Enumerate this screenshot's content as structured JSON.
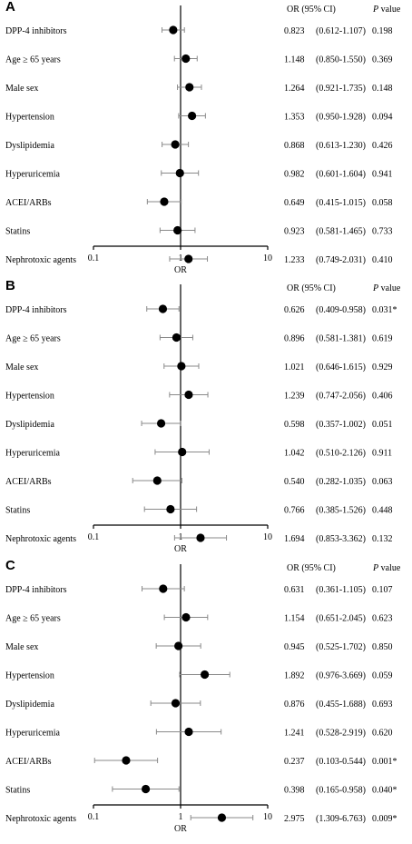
{
  "chart_data": [
    {
      "type": "forest",
      "panel": "A",
      "xlabel": "OR",
      "x_scale": "log",
      "xlim": [
        0.1,
        10
      ],
      "x_ticks": [
        "0.1",
        "1",
        "10"
      ],
      "ref_line": 1,
      "col_headers": {
        "or": "OR (95% CI)",
        "p_italic": "P",
        "p_rest": " value"
      },
      "rows": [
        {
          "label": "DPP-4 inhibitors",
          "or": 0.823,
          "lo": 0.612,
          "hi": 1.107,
          "or_text": "0.823",
          "ci_text": "(0.612-1.107)",
          "p_text": "0.198"
        },
        {
          "label": "Age ≥ 65 years",
          "or": 1.148,
          "lo": 0.85,
          "hi": 1.55,
          "or_text": "1.148",
          "ci_text": "(0.850-1.550)",
          "p_text": "0.369"
        },
        {
          "label": "Male sex",
          "or": 1.264,
          "lo": 0.921,
          "hi": 1.735,
          "or_text": "1.264",
          "ci_text": "(0.921-1.735)",
          "p_text": "0.148"
        },
        {
          "label": "Hypertension",
          "or": 1.353,
          "lo": 0.95,
          "hi": 1.928,
          "or_text": "1.353",
          "ci_text": "(0.950-1.928)",
          "p_text": "0.094"
        },
        {
          "label": "Dyslipidemia",
          "or": 0.868,
          "lo": 0.613,
          "hi": 1.23,
          "or_text": "0.868",
          "ci_text": "(0.613-1.230)",
          "p_text": "0.426"
        },
        {
          "label": "Hyperuricemia",
          "or": 0.982,
          "lo": 0.601,
          "hi": 1.604,
          "or_text": "0.982",
          "ci_text": "(0.601-1.604)",
          "p_text": "0.941"
        },
        {
          "label": "ACEI/ARBs",
          "or": 0.649,
          "lo": 0.415,
          "hi": 1.015,
          "or_text": "0.649",
          "ci_text": "(0.415-1.015)",
          "p_text": "0.058"
        },
        {
          "label": "Statins",
          "or": 0.923,
          "lo": 0.581,
          "hi": 1.465,
          "or_text": "0.923",
          "ci_text": "(0.581-1.465)",
          "p_text": "0.733"
        },
        {
          "label": "Nephrotoxic agents",
          "or": 1.233,
          "lo": 0.749,
          "hi": 2.031,
          "or_text": "1.233",
          "ci_text": "(0.749-2.031)",
          "p_text": "0.410"
        }
      ]
    },
    {
      "type": "forest",
      "panel": "B",
      "xlabel": "OR",
      "x_scale": "log",
      "xlim": [
        0.1,
        10
      ],
      "x_ticks": [
        "0.1",
        "1",
        "10"
      ],
      "ref_line": 1,
      "col_headers": {
        "or": "OR (95% CI)",
        "p_italic": "P",
        "p_rest": " value"
      },
      "rows": [
        {
          "label": "DPP-4 inhibitors",
          "or": 0.626,
          "lo": 0.409,
          "hi": 0.958,
          "or_text": "0.626",
          "ci_text": "(0.409-0.958)",
          "p_text": "0.031*"
        },
        {
          "label": "Age ≥ 65 years",
          "or": 0.896,
          "lo": 0.581,
          "hi": 1.381,
          "or_text": "0.896",
          "ci_text": "(0.581-1.381)",
          "p_text": "0.619"
        },
        {
          "label": "Male sex",
          "or": 1.021,
          "lo": 0.646,
          "hi": 1.615,
          "or_text": "1.021",
          "ci_text": "(0.646-1.615)",
          "p_text": "0.929"
        },
        {
          "label": "Hypertension",
          "or": 1.239,
          "lo": 0.747,
          "hi": 2.056,
          "or_text": "1.239",
          "ci_text": "(0.747-2.056)",
          "p_text": "0.406"
        },
        {
          "label": "Dyslipidemia",
          "or": 0.598,
          "lo": 0.357,
          "hi": 1.002,
          "or_text": "0.598",
          "ci_text": "(0.357-1.002)",
          "p_text": "0.051"
        },
        {
          "label": "Hyperuricemia",
          "or": 1.042,
          "lo": 0.51,
          "hi": 2.126,
          "or_text": "1.042",
          "ci_text": "(0.510-2.126)",
          "p_text": "0.911"
        },
        {
          "label": "ACEI/ARBs",
          "or": 0.54,
          "lo": 0.282,
          "hi": 1.035,
          "or_text": "0.540",
          "ci_text": "(0.282-1.035)",
          "p_text": "0.063"
        },
        {
          "label": "Statins",
          "or": 0.766,
          "lo": 0.385,
          "hi": 1.526,
          "or_text": "0.766",
          "ci_text": "(0.385-1.526)",
          "p_text": "0.448"
        },
        {
          "label": "Nephrotoxic agents",
          "or": 1.694,
          "lo": 0.853,
          "hi": 3.362,
          "or_text": "1.694",
          "ci_text": "(0.853-3.362)",
          "p_text": "0.132"
        }
      ]
    },
    {
      "type": "forest",
      "panel": "C",
      "xlabel": "OR",
      "x_scale": "log",
      "xlim": [
        0.1,
        10
      ],
      "x_ticks": [
        "0.1",
        "1",
        "10"
      ],
      "ref_line": 1,
      "col_headers": {
        "or": "OR (95% CI)",
        "p_italic": "P",
        "p_rest": " value"
      },
      "rows": [
        {
          "label": "DPP-4 inhibitors",
          "or": 0.631,
          "lo": 0.361,
          "hi": 1.105,
          "or_text": "0.631",
          "ci_text": "(0.361-1.105)",
          "p_text": "0.107"
        },
        {
          "label": "Age ≥ 65 years",
          "or": 1.154,
          "lo": 0.651,
          "hi": 2.045,
          "or_text": "1.154",
          "ci_text": "(0.651-2.045)",
          "p_text": "0.623"
        },
        {
          "label": "Male sex",
          "or": 0.945,
          "lo": 0.525,
          "hi": 1.702,
          "or_text": "0.945",
          "ci_text": "(0.525-1.702)",
          "p_text": "0.850"
        },
        {
          "label": "Hypertension",
          "or": 1.892,
          "lo": 0.976,
          "hi": 3.669,
          "or_text": "1.892",
          "ci_text": "(0.976-3.669)",
          "p_text": "0.059"
        },
        {
          "label": "Dyslipidemia",
          "or": 0.876,
          "lo": 0.455,
          "hi": 1.688,
          "or_text": "0.876",
          "ci_text": "(0.455-1.688)",
          "p_text": "0.693"
        },
        {
          "label": "Hyperuricemia",
          "or": 1.241,
          "lo": 0.528,
          "hi": 2.919,
          "or_text": "1.241",
          "ci_text": "(0.528-2.919)",
          "p_text": "0.620"
        },
        {
          "label": "ACEI/ARBs",
          "or": 0.237,
          "lo": 0.103,
          "hi": 0.544,
          "or_text": "0.237",
          "ci_text": "(0.103-0.544)",
          "p_text": "0.001*"
        },
        {
          "label": "Statins",
          "or": 0.398,
          "lo": 0.165,
          "hi": 0.958,
          "or_text": "0.398",
          "ci_text": "(0.165-0.958)",
          "p_text": "0.040*"
        },
        {
          "label": "Nephrotoxic agents",
          "or": 2.975,
          "lo": 1.309,
          "hi": 6.763,
          "or_text": "2.975",
          "ci_text": "(1.309-6.763)",
          "p_text": "0.009*"
        }
      ]
    }
  ]
}
